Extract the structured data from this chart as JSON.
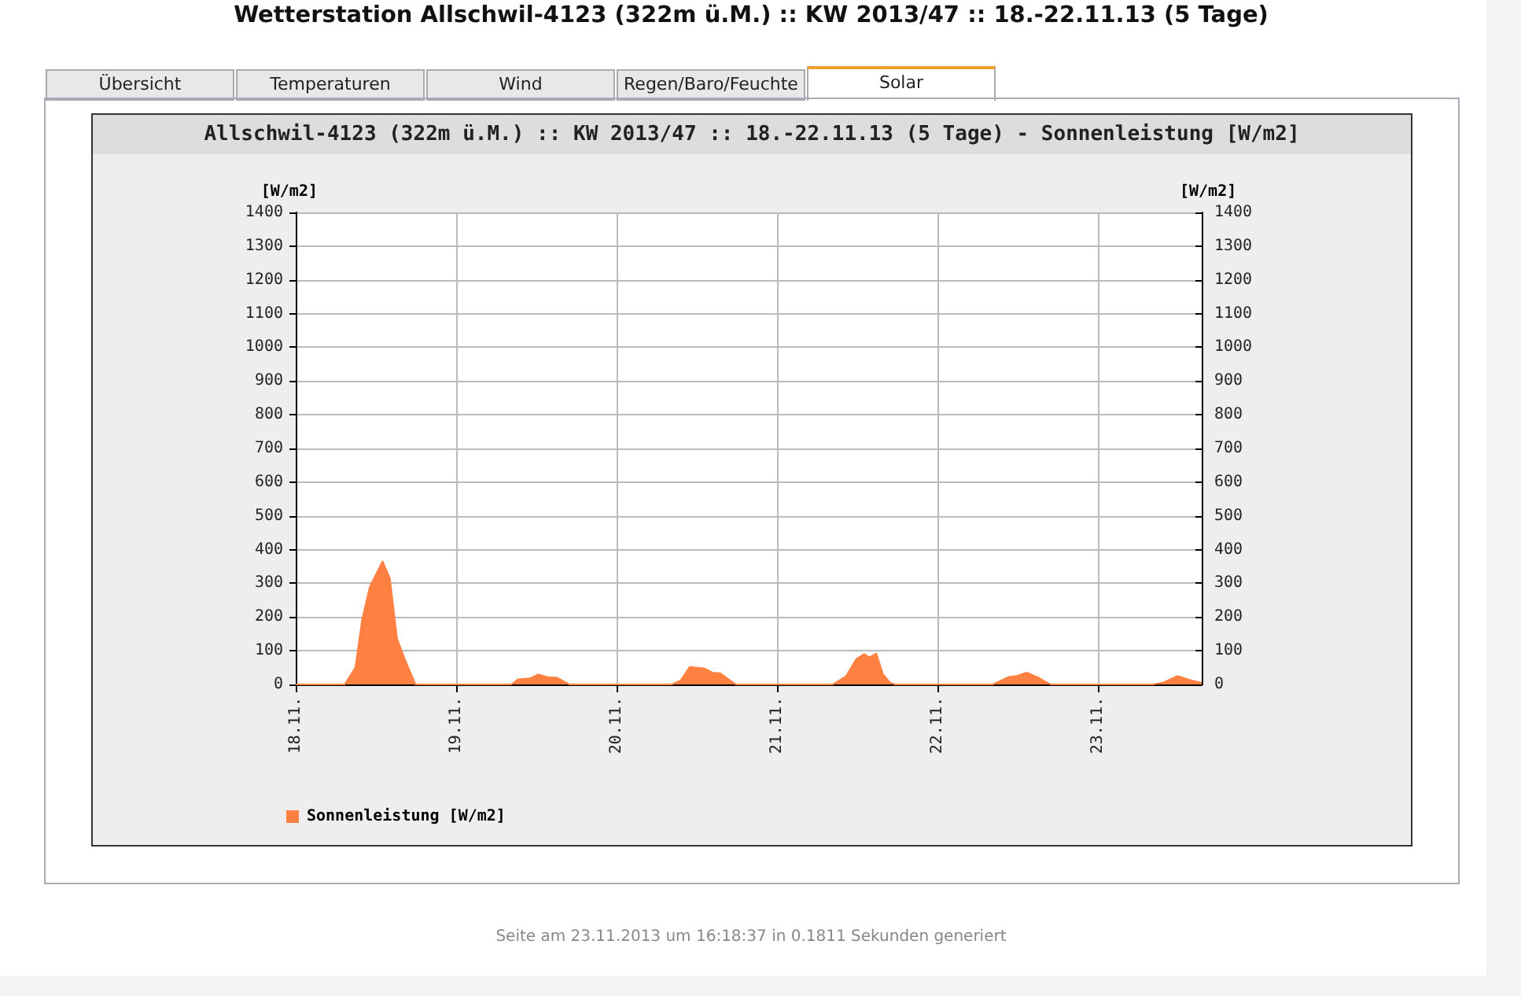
{
  "chart_data": {
    "type": "area",
    "title": "Wetterstation Allschwil-4123 (322m ü.M.) :: KW 2013/47 :: 18.-22.11.13 (5 Tage)",
    "subtitle": "Allschwil-4123 (322m ü.M.) :: KW 2013/47 :: 18.-22.11.13 (5 Tage) - Sonnenleistung [W/m2]",
    "ylabel": "[W/m2]",
    "y2label": "[W/m2]",
    "annotations": [
      "Übersicht",
      "Temperaturen",
      "Wind",
      "Regen/Baro/Feuchte",
      "Solar",
      "Seite am 23.11.2013 um 16:18:37 in 0.1811 Sekunden generiert"
    ],
    "series": [
      {
        "name": "Sonnenleistung [W/m2]",
        "color": "#ff8040",
        "x": [
          "2013-11-18T00:00",
          "2013-11-18T07:20",
          "2013-11-18T08:55",
          "2013-11-18T09:55",
          "2013-11-18T11:05",
          "2013-11-18T13:00",
          "2013-11-18T14:05",
          "2013-11-18T15:10",
          "2013-11-18T16:25",
          "2013-11-18T17:55",
          "2013-11-19T08:15",
          "2013-11-19T09:15",
          "2013-11-19T11:05",
          "2013-11-19T12:15",
          "2013-11-19T13:35",
          "2013-11-19T15:05",
          "2013-11-19T16:55",
          "2013-11-20T08:15",
          "2013-11-20T09:35",
          "2013-11-20T10:55",
          "2013-11-20T13:05",
          "2013-11-20T14:20",
          "2013-11-20T15:30",
          "2013-11-20T17:50",
          "2013-11-21T08:20",
          "2013-11-21T10:20",
          "2013-11-21T11:50",
          "2013-11-21T13:00",
          "2013-11-21T13:50",
          "2013-11-21T14:50",
          "2013-11-21T15:50",
          "2013-11-21T16:55",
          "2013-11-21T17:40",
          "2013-11-22T08:15",
          "2013-11-22T10:35",
          "2013-11-22T11:50",
          "2013-11-22T13:20",
          "2013-11-22T14:55",
          "2013-11-22T16:55",
          "2013-11-23T08:10",
          "2013-11-23T09:40",
          "2013-11-23T11:50",
          "2013-11-23T14:00",
          "2013-11-23T15:30"
        ],
        "values": [
          0,
          0,
          50,
          190,
          290,
          365,
          315,
          135,
          70,
          0,
          0,
          15,
          18,
          30,
          22,
          20,
          0,
          0,
          12,
          52,
          48,
          35,
          33,
          0,
          0,
          25,
          75,
          90,
          80,
          92,
          30,
          5,
          0,
          0,
          22,
          25,
          35,
          22,
          0,
          0,
          5,
          25,
          12,
          5
        ]
      }
    ],
    "xlim": [
      "2013-11-18T00:00",
      "2013-11-23T15:30"
    ],
    "xticks": [
      {
        "value": "2013-11-18",
        "label": "18.11."
      },
      {
        "value": "2013-11-19",
        "label": "19.11."
      },
      {
        "value": "2013-11-20",
        "label": "20.11."
      },
      {
        "value": "2013-11-21",
        "label": "21.11."
      },
      {
        "value": "2013-11-22",
        "label": "22.11."
      },
      {
        "value": "2013-11-23",
        "label": "23.11."
      }
    ],
    "ylim": [
      0,
      1400
    ],
    "yticks": [
      0,
      100,
      200,
      300,
      400,
      500,
      600,
      700,
      800,
      900,
      1000,
      1100,
      1200,
      1300,
      1400
    ],
    "y2lim": [
      0,
      1400
    ],
    "y2ticks": [
      0,
      100,
      200,
      300,
      400,
      500,
      600,
      700,
      800,
      900,
      1000,
      1100,
      1200,
      1300,
      1400
    ],
    "grid": true,
    "legend": "bottom left",
    "marker": "none",
    "line_style": "solid"
  }
}
